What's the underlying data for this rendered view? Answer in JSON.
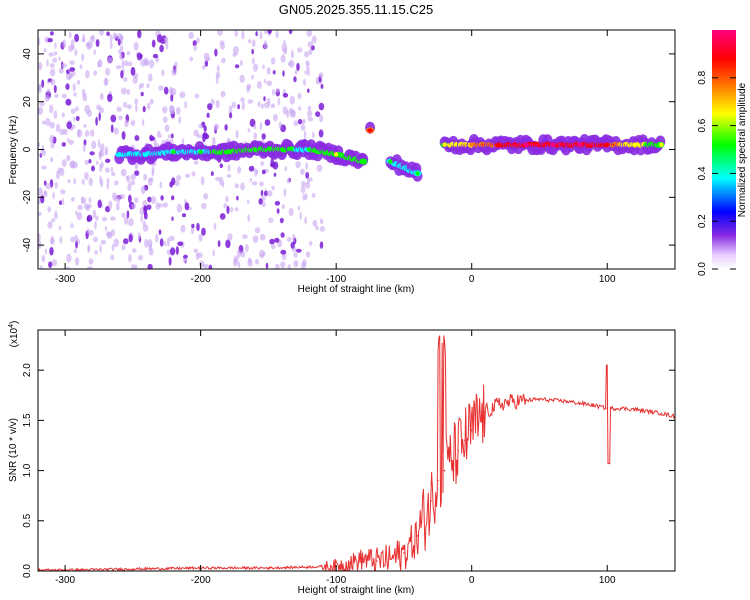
{
  "title": "GN05.2025.355.11.15.C25",
  "chart_data": [
    {
      "type": "heatmap",
      "name": "spectrogram",
      "xlabel": "Height of straight line (km)",
      "ylabel": "Frequency (Hz)",
      "xlim": [
        -320,
        150
      ],
      "ylim": [
        -50,
        50
      ],
      "xticks": [
        -300,
        -200,
        -100,
        0,
        100
      ],
      "yticks": [
        -40,
        -20,
        0,
        20,
        40
      ],
      "ridge": [
        {
          "x": -260,
          "y": -2,
          "amp": 0.3
        },
        {
          "x": -240,
          "y": -2,
          "amp": 0.35
        },
        {
          "x": -220,
          "y": -1,
          "amp": 0.4
        },
        {
          "x": -200,
          "y": -1,
          "amp": 0.4
        },
        {
          "x": -180,
          "y": -1,
          "amp": 0.45
        },
        {
          "x": -160,
          "y": 0,
          "amp": 0.45
        },
        {
          "x": -140,
          "y": 0,
          "amp": 0.45
        },
        {
          "x": -120,
          "y": 0,
          "amp": 0.4
        },
        {
          "x": -100,
          "y": -2,
          "amp": 0.55
        },
        {
          "x": -80,
          "y": -5,
          "amp": 0.45
        },
        {
          "x": -75,
          "y": 8,
          "amp": 0.8
        },
        {
          "x": -60,
          "y": -5,
          "amp": 0.4
        },
        {
          "x": -40,
          "y": -10,
          "amp": 0.4
        },
        {
          "x": -20,
          "y": 2,
          "amp": 0.55
        },
        {
          "x": 0,
          "y": 2,
          "amp": 0.7
        },
        {
          "x": 20,
          "y": 2,
          "amp": 0.85
        },
        {
          "x": 40,
          "y": 2,
          "amp": 0.9
        },
        {
          "x": 60,
          "y": 2,
          "amp": 0.92
        },
        {
          "x": 80,
          "y": 2,
          "amp": 0.95
        },
        {
          "x": 100,
          "y": 2,
          "amp": 0.85
        },
        {
          "x": 120,
          "y": 2,
          "amp": 0.6
        },
        {
          "x": 140,
          "y": 2,
          "amp": 0.55
        }
      ]
    },
    {
      "type": "line",
      "name": "snr",
      "xlabel": "Height of straight line (km)",
      "ylabel": "SNR (10 * v/v)",
      "yscale_note": "(x10",
      "yscale_exp": "4",
      "xlim": [
        -320,
        150
      ],
      "ylim": [
        0,
        2.4
      ],
      "xticks": [
        -300,
        -200,
        -100,
        0,
        100
      ],
      "yticks": [
        0.0,
        0.5,
        1.0,
        1.5,
        2.0
      ],
      "x": [
        -320,
        -300,
        -250,
        -200,
        -150,
        -120,
        -100,
        -90,
        -80,
        -70,
        -60,
        -50,
        -40,
        -30,
        -25,
        -20,
        -15,
        -10,
        -5,
        0,
        10,
        20,
        30,
        40,
        50,
        60,
        70,
        80,
        90,
        100,
        110,
        120,
        130,
        140,
        150
      ],
      "y": [
        0.01,
        0.01,
        0.02,
        0.03,
        0.03,
        0.04,
        0.05,
        0.08,
        0.12,
        0.1,
        0.12,
        0.18,
        0.35,
        0.7,
        0.9,
        1.0,
        1.1,
        1.2,
        1.3,
        1.4,
        1.58,
        1.66,
        1.69,
        1.7,
        1.71,
        1.7,
        1.69,
        1.67,
        1.65,
        1.62,
        1.62,
        1.61,
        1.59,
        1.57,
        1.54
      ]
    }
  ],
  "colorbar": {
    "label": "Normalized spectral amplitude",
    "ticks": [
      0.0,
      0.2,
      0.4,
      0.6,
      0.8
    ],
    "range": [
      0,
      1
    ],
    "colors": [
      "#ffffff",
      "#8a2be2",
      "#0000ff",
      "#00ffff",
      "#00ff00",
      "#ffff00",
      "#ff8000",
      "#ff0000",
      "#ff0080"
    ]
  }
}
